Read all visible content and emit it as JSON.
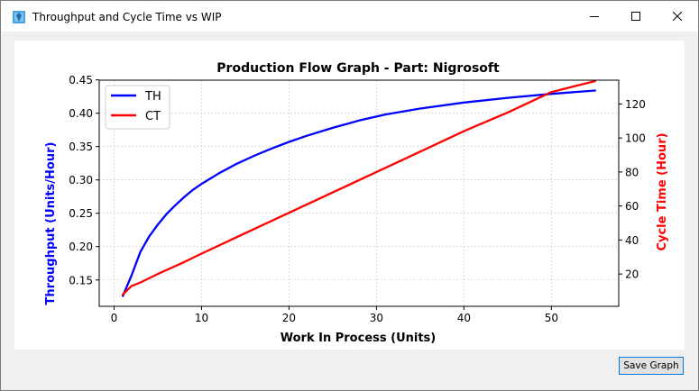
{
  "window": {
    "title": "Throughput and Cycle Time vs WIP",
    "icon": "feather-app-icon",
    "controls": [
      "minimize-icon",
      "maximize-icon",
      "close-icon"
    ]
  },
  "actions": {
    "save_label": "Save Graph"
  },
  "colors": {
    "throughput": "#0000ff",
    "cycle_time": "#ff0000",
    "accent": "#0078d7"
  },
  "chart_data": {
    "type": "line",
    "title": "Production Flow Graph - Part: Nigrosoft",
    "xlabel": "Work In Process (Units)",
    "ylabel": "Throughput (Units/Hour)",
    "y2label": "Cycle Time (Hour)",
    "xlim": [
      -1.7,
      57.7
    ],
    "ylim": [
      0.1105,
      0.4495
    ],
    "y2lim": [
      1.0,
      134.0
    ],
    "xticks": [
      0,
      10,
      20,
      30,
      40,
      50
    ],
    "yticks": [
      0.15,
      0.2,
      0.25,
      0.3,
      0.35,
      0.4,
      0.45
    ],
    "y2ticks": [
      20,
      40,
      60,
      80,
      100,
      120
    ],
    "xtick_labels": [
      "0",
      "10",
      "20",
      "30",
      "40",
      "50"
    ],
    "ytick_labels": [
      "0.15",
      "0.20",
      "0.25",
      "0.30",
      "0.35",
      "0.40",
      "0.45"
    ],
    "y2tick_labels": [
      "20",
      "40",
      "60",
      "80",
      "100",
      "120"
    ],
    "grid": true,
    "legend_position": "top-left",
    "series": [
      {
        "name": "TH",
        "axis": "left",
        "color": "#0000ff",
        "x": [
          1,
          2,
          3,
          4,
          5,
          6,
          7,
          8,
          9,
          10,
          12,
          14,
          16,
          18,
          20,
          22,
          25,
          28,
          31,
          35,
          40,
          45,
          50,
          55
        ],
        "values": [
          0.126,
          0.157,
          0.192,
          0.215,
          0.233,
          0.249,
          0.262,
          0.274,
          0.285,
          0.294,
          0.31,
          0.324,
          0.336,
          0.347,
          0.357,
          0.366,
          0.378,
          0.389,
          0.398,
          0.407,
          0.416,
          0.423,
          0.429,
          0.434
        ]
      },
      {
        "name": "CT",
        "axis": "right",
        "color": "#ff0000",
        "x": [
          1,
          2,
          3,
          5,
          8,
          10,
          15,
          20,
          25,
          30,
          35,
          40,
          45,
          50,
          55
        ],
        "values": [
          8,
          13,
          15,
          20,
          27,
          32,
          44,
          56,
          68,
          80,
          92,
          104,
          115,
          127,
          138
        ]
      }
    ]
  }
}
